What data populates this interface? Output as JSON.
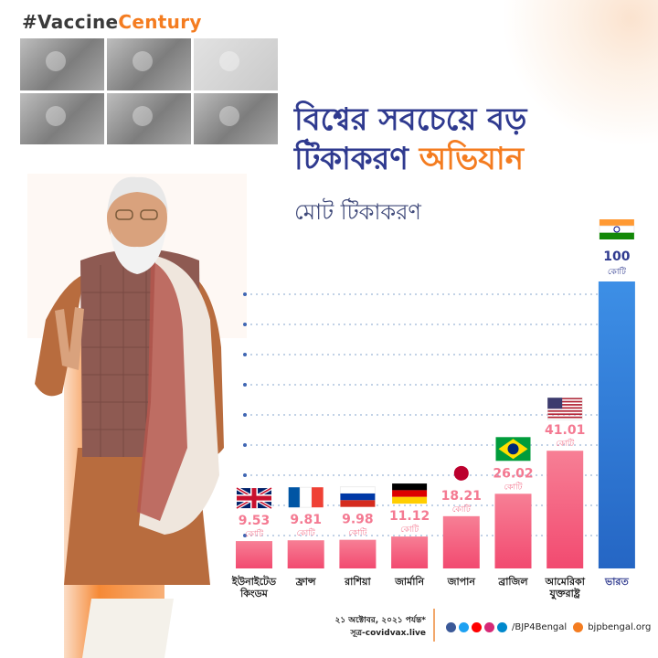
{
  "header": {
    "hashtag_prefix": "#Vaccine",
    "hashtag_accent": "Century"
  },
  "title": {
    "line1": "বিশ্বের সবচেয়ে বড়",
    "line2_part1": "টিকাকরণ ",
    "line2_part2": "অভিযান"
  },
  "subtitle": "মোট টিকাকরণ",
  "footer": {
    "date": "২১ অক্টোবর, ২০২১ পর্যন্ত*",
    "source": "সূত্র-covidvax.live",
    "handle": "/BJP4Bengal",
    "website": "bjpbengal.org"
  },
  "colors": {
    "accent_orange": "#f47c20",
    "navy": "#2f3a8f",
    "bar_pink": "#f5607d",
    "bar_blue": "#2f7fd6"
  },
  "chart_data": {
    "type": "bar",
    "unit": "কোটি",
    "categories": [
      "ইউনাইটেড কিংডম",
      "ফ্রান্স",
      "রাশিয়া",
      "জার্মানি",
      "জাপান",
      "ব্রাজিল",
      "আমেরিকা যুক্তরাষ্ট্র",
      "ভারত"
    ],
    "values": [
      9.53,
      9.81,
      9.98,
      11.12,
      18.21,
      26.02,
      41.01,
      100
    ],
    "value_labels": [
      "9.53",
      "9.81",
      "9.98",
      "11.12",
      "18.21",
      "26.02",
      "41.01",
      "100"
    ],
    "flags": [
      "uk-flag-icon",
      "france-flag-icon",
      "russia-flag-icon",
      "germany-flag-icon",
      "japan-flag-icon",
      "brazil-flag-icon",
      "usa-flag-icon",
      "india-flag-icon"
    ],
    "highlight": "ভারত",
    "grid": "dotted"
  }
}
